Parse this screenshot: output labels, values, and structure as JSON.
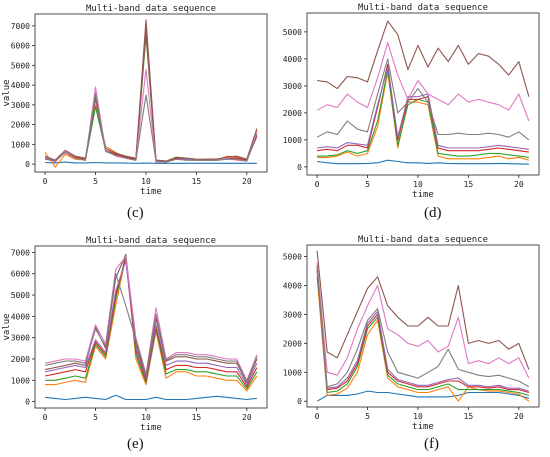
{
  "chart_data": [
    {
      "type": "line",
      "panel_label": "(c)",
      "title": "Multi-band data sequence",
      "xlabel": "time",
      "ylabel": "value",
      "xlim": [
        -1,
        22
      ],
      "ylim": [
        -400,
        7600
      ],
      "x_ticks": [
        0,
        5,
        10,
        15,
        20
      ],
      "y_ticks": [
        0,
        1000,
        2000,
        3000,
        4000,
        5000,
        6000,
        7000
      ],
      "x": [
        0,
        1,
        2,
        3,
        4,
        5,
        6,
        7,
        8,
        9,
        10,
        11,
        12,
        13,
        14,
        15,
        16,
        17,
        18,
        19,
        20,
        21
      ],
      "series": [
        {
          "color": "#1f77b4",
          "values": [
            80,
            60,
            100,
            60,
            60,
            80,
            60,
            60,
            50,
            40,
            50,
            40,
            40,
            40,
            40,
            40,
            40,
            40,
            40,
            40,
            40,
            40
          ]
        },
        {
          "color": "#ff7f0e",
          "values": [
            600,
            -150,
            500,
            250,
            200,
            3000,
            900,
            600,
            300,
            200,
            6700,
            150,
            100,
            300,
            300,
            200,
            200,
            200,
            400,
            350,
            250,
            1700
          ]
        },
        {
          "color": "#2ca02c",
          "values": [
            300,
            200,
            600,
            300,
            200,
            2900,
            700,
            450,
            350,
            200,
            6500,
            100,
            100,
            250,
            250,
            200,
            200,
            200,
            250,
            300,
            200,
            1500
          ]
        },
        {
          "color": "#d62728",
          "values": [
            350,
            200,
            650,
            350,
            250,
            3300,
            700,
            500,
            350,
            250,
            6800,
            200,
            150,
            300,
            250,
            200,
            250,
            250,
            300,
            300,
            200,
            1400
          ]
        },
        {
          "color": "#9467bd",
          "values": [
            250,
            150,
            600,
            300,
            200,
            3400,
            650,
            450,
            300,
            200,
            7100,
            150,
            100,
            250,
            250,
            200,
            200,
            200,
            250,
            250,
            150,
            1500
          ]
        },
        {
          "color": "#8c564b",
          "values": [
            400,
            200,
            700,
            400,
            300,
            3500,
            800,
            550,
            400,
            300,
            7300,
            200,
            150,
            350,
            300,
            250,
            250,
            250,
            350,
            400,
            250,
            1800
          ]
        },
        {
          "color": "#e377c2",
          "values": [
            350,
            100,
            650,
            300,
            200,
            3900,
            700,
            400,
            300,
            200,
            4800,
            100,
            100,
            250,
            200,
            200,
            200,
            200,
            300,
            200,
            150,
            1600
          ]
        },
        {
          "color": "#7f7f7f",
          "values": [
            300,
            150,
            600,
            300,
            200,
            3600,
            650,
            450,
            300,
            200,
            3500,
            150,
            100,
            250,
            200,
            200,
            200,
            200,
            250,
            250,
            150,
            1500
          ]
        }
      ]
    },
    {
      "type": "line",
      "panel_label": "(d)",
      "title": "Multi-band data sequence",
      "xlabel": "time",
      "ylabel": "",
      "xlim": [
        -1,
        22
      ],
      "ylim": [
        -300,
        5700
      ],
      "x_ticks": [
        0,
        5,
        10,
        15,
        20
      ],
      "y_ticks": [
        0,
        1000,
        2000,
        3000,
        4000,
        5000
      ],
      "x": [
        0,
        1,
        2,
        3,
        4,
        5,
        6,
        7,
        8,
        9,
        10,
        11,
        12,
        13,
        14,
        15,
        16,
        17,
        18,
        19,
        20,
        21
      ],
      "series": [
        {
          "color": "#1f77b4",
          "values": [
            200,
            150,
            120,
            120,
            120,
            130,
            150,
            250,
            200,
            150,
            150,
            130,
            150,
            130,
            120,
            120,
            120,
            120,
            130,
            120,
            110,
            100
          ]
        },
        {
          "color": "#ff7f0e",
          "values": [
            350,
            350,
            400,
            550,
            400,
            500,
            1500,
            3500,
            700,
            2400,
            2400,
            2300,
            400,
            300,
            300,
            300,
            300,
            350,
            400,
            300,
            350,
            250
          ]
        },
        {
          "color": "#2ca02c",
          "values": [
            400,
            400,
            450,
            600,
            500,
            600,
            1700,
            3600,
            800,
            2300,
            2500,
            2400,
            500,
            450,
            400,
            400,
            450,
            500,
            500,
            450,
            400,
            350
          ]
        },
        {
          "color": "#d62728",
          "values": [
            600,
            650,
            600,
            800,
            800,
            700,
            2200,
            3800,
            1000,
            2500,
            2500,
            2600,
            700,
            600,
            600,
            600,
            600,
            650,
            700,
            650,
            600,
            550
          ]
        },
        {
          "color": "#9467bd",
          "values": [
            700,
            750,
            700,
            900,
            850,
            800,
            2300,
            3700,
            1100,
            2600,
            2600,
            2700,
            800,
            700,
            700,
            700,
            700,
            750,
            800,
            750,
            700,
            650
          ]
        },
        {
          "color": "#8c564b",
          "values": [
            3200,
            3150,
            2900,
            3350,
            3300,
            3150,
            4300,
            5400,
            4900,
            3600,
            4500,
            3700,
            4400,
            3900,
            4500,
            3800,
            4200,
            4100,
            3800,
            3400,
            3900,
            2600
          ]
        },
        {
          "color": "#e377c2",
          "values": [
            2100,
            2300,
            2200,
            2700,
            2400,
            2200,
            3300,
            4600,
            3400,
            2500,
            3200,
            2700,
            2500,
            2300,
            2700,
            2400,
            2500,
            2400,
            2300,
            2100,
            2700,
            1700
          ]
        },
        {
          "color": "#7f7f7f",
          "values": [
            1100,
            1300,
            1200,
            1700,
            1400,
            1300,
            2700,
            4000,
            2000,
            2400,
            2900,
            2400,
            1200,
            1200,
            1250,
            1200,
            1200,
            1250,
            1200,
            1100,
            1300,
            1000
          ]
        }
      ]
    },
    {
      "type": "line",
      "panel_label": "(e)",
      "title": "Multi-band data sequence",
      "xlabel": "time",
      "ylabel": "value",
      "xlim": [
        -1,
        22
      ],
      "ylim": [
        -300,
        7300
      ],
      "x_ticks": [
        0,
        5,
        10,
        15,
        20
      ],
      "y_ticks": [
        0,
        1000,
        2000,
        3000,
        4000,
        5000,
        6000,
        7000
      ],
      "x": [
        0,
        1,
        2,
        3,
        4,
        5,
        6,
        7,
        8,
        9,
        10,
        11,
        12,
        13,
        14,
        15,
        16,
        17,
        18,
        19,
        20,
        21
      ],
      "series": [
        {
          "color": "#1f77b4",
          "values": [
            200,
            150,
            100,
            150,
            200,
            150,
            100,
            300,
            100,
            100,
            100,
            200,
            100,
            100,
            100,
            150,
            200,
            250,
            200,
            150,
            100,
            150
          ]
        },
        {
          "color": "#ff7f0e",
          "values": [
            800,
            800,
            900,
            1000,
            900,
            2600,
            2000,
            4500,
            6800,
            2000,
            800,
            3300,
            1100,
            1400,
            1400,
            1200,
            1200,
            1100,
            1000,
            1000,
            500,
            1200
          ]
        },
        {
          "color": "#2ca02c",
          "values": [
            1000,
            1000,
            1100,
            1200,
            1100,
            2700,
            2100,
            4800,
            6900,
            2200,
            900,
            3400,
            1300,
            1500,
            1500,
            1400,
            1400,
            1300,
            1200,
            1200,
            600,
            1400
          ]
        },
        {
          "color": "#d62728",
          "values": [
            1200,
            1300,
            1400,
            1500,
            1400,
            2800,
            2200,
            5000,
            6700,
            2400,
            1000,
            3500,
            1500,
            1700,
            1700,
            1600,
            1600,
            1500,
            1400,
            1400,
            700,
            1600
          ]
        },
        {
          "color": "#9467bd",
          "values": [
            1400,
            1500,
            1600,
            1700,
            1600,
            2900,
            2300,
            5200,
            6600,
            2500,
            1100,
            3600,
            1700,
            1900,
            1900,
            1800,
            1800,
            1700,
            1600,
            1600,
            800,
            1800
          ]
        },
        {
          "color": "#8c564b",
          "values": [
            1500,
            1600,
            1700,
            1800,
            1700,
            3500,
            2500,
            5800,
            6900,
            2700,
            1200,
            3900,
            1900,
            2100,
            2100,
            2000,
            2000,
            1900,
            1800,
            1800,
            900,
            2000
          ]
        },
        {
          "color": "#e377c2",
          "values": [
            1800,
            1900,
            2000,
            2000,
            1900,
            3600,
            2700,
            6200,
            6800,
            3000,
            1300,
            4400,
            2000,
            2300,
            2300,
            2200,
            2200,
            2100,
            2000,
            2000,
            1000,
            2200
          ]
        },
        {
          "color": "#7f7f7f",
          "values": [
            1700,
            1800,
            1900,
            1900,
            1800,
            3400,
            2600,
            6000,
            4500,
            2900,
            1250,
            4100,
            1950,
            2200,
            2200,
            2100,
            2100,
            2000,
            1900,
            1900,
            950,
            2100
          ]
        }
      ]
    },
    {
      "type": "line",
      "panel_label": "(f)",
      "title": "Multi-band data sequence",
      "xlabel": "time",
      "ylabel": "",
      "xlim": [
        -1,
        22
      ],
      "ylim": [
        -200,
        5400
      ],
      "x_ticks": [
        0,
        5,
        10,
        15,
        20
      ],
      "y_ticks": [
        0,
        1000,
        2000,
        3000,
        4000,
        5000
      ],
      "x": [
        0,
        1,
        2,
        3,
        4,
        5,
        6,
        7,
        8,
        9,
        10,
        11,
        12,
        13,
        14,
        15,
        16,
        17,
        18,
        19,
        20,
        21
      ],
      "series": [
        {
          "color": "#1f77b4",
          "values": [
            0,
            200,
            200,
            200,
            250,
            350,
            300,
            300,
            250,
            200,
            150,
            150,
            150,
            150,
            200,
            300,
            300,
            300,
            300,
            250,
            200,
            100
          ]
        },
        {
          "color": "#ff7f0e",
          "values": [
            4300,
            200,
            250,
            450,
            1000,
            2300,
            2800,
            800,
            500,
            400,
            300,
            300,
            400,
            500,
            0,
            500,
            400,
            350,
            350,
            300,
            250,
            0
          ]
        },
        {
          "color": "#2ca02c",
          "values": [
            4500,
            300,
            350,
            600,
            1200,
            2500,
            2900,
            900,
            600,
            500,
            400,
            400,
            500,
            600,
            400,
            400,
            400,
            400,
            400,
            350,
            300,
            200
          ]
        },
        {
          "color": "#d62728",
          "values": [
            4600,
            400,
            450,
            700,
            1300,
            2600,
            3000,
            1000,
            700,
            600,
            500,
            500,
            600,
            700,
            700,
            500,
            500,
            450,
            500,
            400,
            400,
            300
          ]
        },
        {
          "color": "#9467bd",
          "values": [
            4700,
            450,
            500,
            800,
            1400,
            2700,
            3100,
            1100,
            750,
            650,
            550,
            550,
            650,
            750,
            800,
            550,
            550,
            500,
            550,
            450,
            450,
            350
          ]
        },
        {
          "color": "#8c564b",
          "values": [
            5200,
            1700,
            1500,
            2300,
            3100,
            3900,
            4300,
            3300,
            2900,
            2600,
            2600,
            2900,
            2600,
            2600,
            4000,
            2000,
            2100,
            2000,
            2100,
            1800,
            2000,
            1100
          ]
        },
        {
          "color": "#e377c2",
          "values": [
            4800,
            1000,
            900,
            1500,
            2500,
            3300,
            4000,
            2500,
            2300,
            2000,
            1900,
            2100,
            1700,
            1900,
            2900,
            1300,
            1400,
            1300,
            1500,
            1300,
            1500,
            800
          ]
        },
        {
          "color": "#7f7f7f",
          "values": [
            4700,
            500,
            600,
            1000,
            1800,
            2800,
            3200,
            1700,
            1000,
            900,
            800,
            1000,
            1200,
            1800,
            1100,
            1000,
            900,
            850,
            900,
            800,
            700,
            500
          ]
        }
      ]
    }
  ]
}
